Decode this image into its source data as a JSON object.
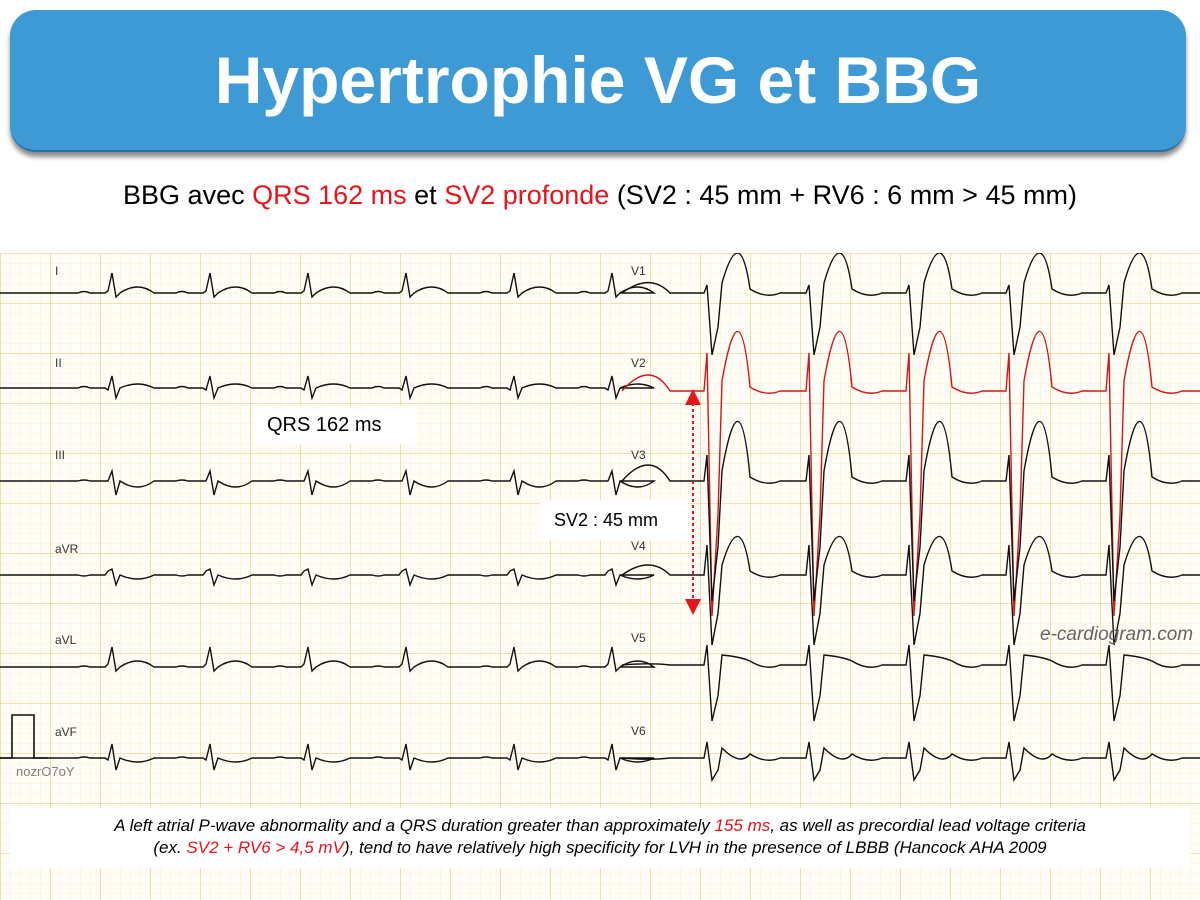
{
  "title": "Hypertrophie VG et BBG",
  "subtitle": {
    "part1": "BBG avec ",
    "qrs": "QRS 162 ms",
    "part2": " et ",
    "sv2": "SV2 profonde",
    "part3": " (SV2 : 45 mm + RV6 : 6 mm > 45 mm)"
  },
  "annotations": {
    "qrs_label": "QRS 162 ms",
    "sv2_label": "SV2 : 45 mm"
  },
  "leads": {
    "limb": [
      "I",
      "II",
      "III",
      "aVR",
      "aVL",
      "aVF"
    ],
    "precordial": [
      "V1",
      "V2",
      "V3",
      "V4",
      "V5",
      "V6"
    ]
  },
  "watermark": "e-cardiogram.com",
  "code_label": "nozrO7oY",
  "footer": {
    "text1": "A left atrial P-wave abnormality and a QRS duration greater than approximately ",
    "val1": "155 ms",
    "text2": ", as well as precordial lead voltage criteria",
    "text3": "(ex. ",
    "val2": "SV2 + RV6 > 4,5 mV",
    "text4": "), tend to have relatively high specificity for LVH in the presence of LBBB (Hancock AHA 2009"
  },
  "colors": {
    "banner": "#3e9ad5",
    "highlight": "#e8141b",
    "grid_major": "#e7c766",
    "grid_minor": "#e9d58f",
    "trace": "#111111",
    "highlight_trace": "#d2171b"
  }
}
